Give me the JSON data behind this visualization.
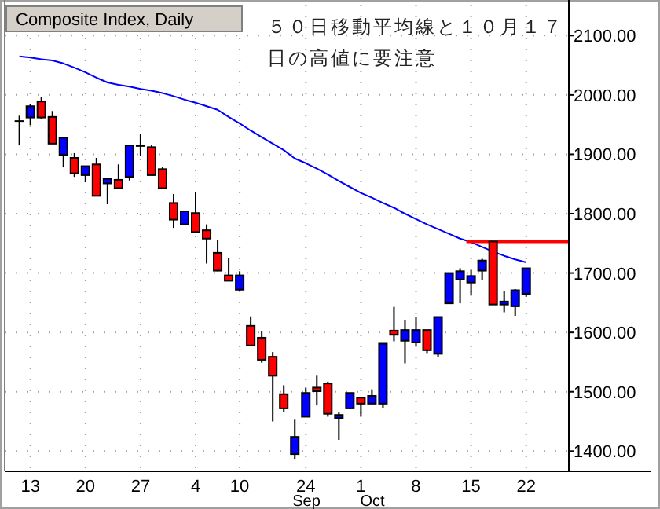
{
  "chart_data": {
    "type": "candlestick",
    "title": "Composite Index, Daily",
    "annotations": [
      "５０日移動平均線と１０月１７日の高値に要注意",
      "Sep",
      "Oct"
    ],
    "categories": [
      null,
      "13",
      null,
      null,
      null,
      null,
      "20",
      null,
      null,
      null,
      null,
      "27",
      null,
      null,
      null,
      null,
      "4",
      null,
      null,
      null,
      "10",
      null,
      null,
      null,
      null,
      null,
      "24",
      null,
      null,
      null,
      null,
      "1",
      null,
      null,
      null,
      null,
      "8",
      null,
      null,
      null,
      null,
      "15",
      null,
      null,
      null,
      null,
      "22"
    ],
    "ohlc": [
      [
        1956,
        1965,
        1915,
        1956
      ],
      [
        1962,
        1984,
        1949,
        1981
      ],
      [
        1989,
        1997,
        1959,
        1962
      ],
      [
        1963,
        1973,
        1918,
        1918
      ],
      [
        1899,
        1928,
        1878,
        1928
      ],
      [
        1894,
        1902,
        1862,
        1868
      ],
      [
        1865,
        1880,
        1853,
        1880
      ],
      [
        1883,
        1894,
        1830,
        1830
      ],
      [
        1851,
        1859,
        1816,
        1859
      ],
      [
        1857,
        1883,
        1841,
        1843
      ],
      [
        1862,
        1915,
        1856,
        1915
      ],
      [
        1914,
        1935,
        1897,
        1914
      ],
      [
        1912,
        1915,
        1865,
        1865
      ],
      [
        1875,
        1878,
        1843,
        1843
      ],
      [
        1818,
        1833,
        1776,
        1790
      ],
      [
        1782,
        1804,
        1782,
        1804
      ],
      [
        1801,
        1837,
        1769,
        1769
      ],
      [
        1772,
        1782,
        1716,
        1758
      ],
      [
        1734,
        1756,
        1703,
        1704
      ],
      [
        1696,
        1725,
        1687,
        1687
      ],
      [
        1672,
        1703,
        1669,
        1696
      ],
      [
        1611,
        1627,
        1578,
        1578
      ],
      [
        1591,
        1602,
        1549,
        1554
      ],
      [
        1559,
        1567,
        1450,
        1527
      ],
      [
        1496,
        1511,
        1466,
        1472
      ],
      [
        1395,
        1453,
        1387,
        1424
      ],
      [
        1458,
        1507,
        1458,
        1498
      ],
      [
        1507,
        1527,
        1477,
        1501
      ],
      [
        1514,
        1517,
        1458,
        1463
      ],
      [
        1456,
        1466,
        1419,
        1461
      ],
      [
        1472,
        1498,
        1471,
        1498
      ],
      [
        1490,
        1490,
        1458,
        1480
      ],
      [
        1480,
        1504,
        1480,
        1493
      ],
      [
        1480,
        1581,
        1473,
        1581
      ],
      [
        1603,
        1643,
        1585,
        1596
      ],
      [
        1586,
        1620,
        1548,
        1604
      ],
      [
        1583,
        1626,
        1577,
        1604
      ],
      [
        1604,
        1604,
        1564,
        1570
      ],
      [
        1564,
        1626,
        1558,
        1626
      ],
      [
        1649,
        1700,
        1649,
        1700
      ],
      [
        1689,
        1708,
        1649,
        1703
      ],
      [
        1684,
        1705,
        1662,
        1695
      ],
      [
        1704,
        1724,
        1688,
        1721
      ],
      [
        1753,
        1753,
        1647,
        1647
      ],
      [
        1647,
        1669,
        1634,
        1652
      ],
      [
        1644,
        1673,
        1628,
        1671
      ],
      [
        1665,
        1708,
        1660,
        1708
      ]
    ],
    "colors": [
      "#000000",
      "#0000ff",
      "#ff0000",
      "#ff0000",
      "#0000ff",
      "#ff0000",
      "#0000ff",
      "#ff0000",
      "#0000ff",
      "#ff0000",
      "#0000ff",
      "#000000",
      "#ff0000",
      "#ff0000",
      "#ff0000",
      "#0000ff",
      "#ff0000",
      "#ff0000",
      "#ff0000",
      "#ff0000",
      "#0000ff",
      "#ff0000",
      "#ff0000",
      "#ff0000",
      "#ff0000",
      "#0000ff",
      "#0000ff",
      "#ff0000",
      "#ff0000",
      "#0000ff",
      "#0000ff",
      "#ff0000",
      "#0000ff",
      "#0000ff",
      "#ff0000",
      "#0000ff",
      "#0000ff",
      "#ff0000",
      "#0000ff",
      "#0000ff",
      "#0000ff",
      "#0000ff",
      "#0000ff",
      "#ff0000",
      "#0000ff",
      "#0000ff",
      "#0000ff"
    ],
    "series": [
      {
        "type": "line",
        "color": "#0000ff",
        "values": [
          2065,
          2063,
          2060,
          2058,
          2053,
          2046,
          2038,
          2029,
          2021,
          2017,
          2014,
          2010,
          2007,
          2003,
          1998,
          1992,
          1987,
          1981,
          1975,
          1963,
          1952,
          1940,
          1929,
          1918,
          1907,
          1893,
          1885,
          1876,
          1866,
          1855,
          1845,
          1835,
          1827,
          1818,
          1810,
          1800,
          1791,
          1782,
          1774,
          1766,
          1758,
          1752,
          1744,
          1736,
          1729,
          1723,
          1718
        ]
      }
    ],
    "ref_lines": [
      {
        "axis": "y",
        "value": 1753,
        "color": "#ff0000"
      }
    ],
    "ylim": [
      1366,
      2152
    ],
    "yticks": [
      {
        "value": 1400,
        "label": "1400.00"
      },
      {
        "value": 1500,
        "label": "1500.00"
      },
      {
        "value": 1600,
        "label": "1600.00"
      },
      {
        "value": 1700,
        "label": "1700.00"
      },
      {
        "value": 1800,
        "label": "1800.00"
      },
      {
        "value": 1900,
        "label": "1900.00"
      },
      {
        "value": 2000,
        "label": "2000.00"
      },
      {
        "value": 2100,
        "label": "2100.00"
      }
    ],
    "grid": true
  }
}
